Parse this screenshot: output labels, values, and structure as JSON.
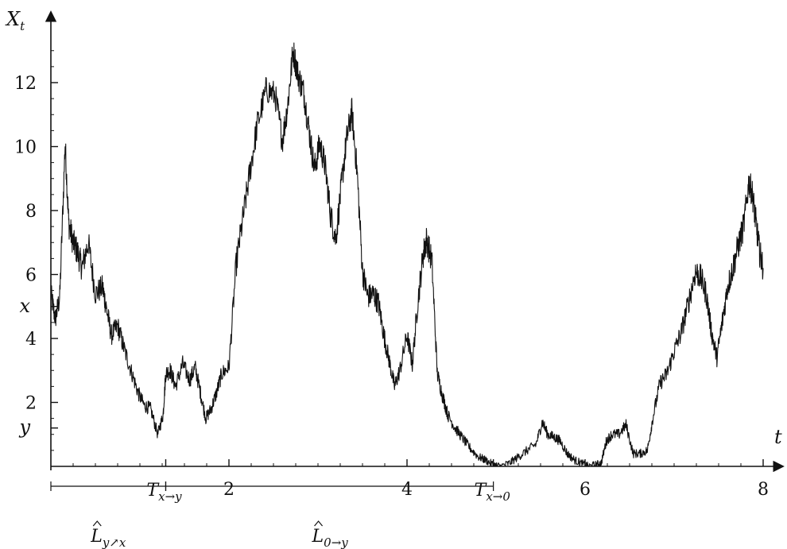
{
  "chart_data": {
    "type": "line",
    "title": "",
    "xlabel": "t",
    "ylabel": "X",
    "ylabel_subscript": "t",
    "xlim": [
      0,
      8.2
    ],
    "ylim": [
      0,
      13.8
    ],
    "x_ticks": [
      {
        "value": 2,
        "label": "2"
      },
      {
        "value": 4,
        "label": "4"
      },
      {
        "value": 6,
        "label": "6"
      },
      {
        "value": 8,
        "label": "8"
      }
    ],
    "y_ticks": [
      {
        "value": 2,
        "label": "2"
      },
      {
        "value": 4,
        "label": "4"
      },
      {
        "value": 6,
        "label": "6"
      },
      {
        "value": 8,
        "label": "8"
      },
      {
        "value": 10,
        "label": "10"
      },
      {
        "value": 12,
        "label": "12"
      }
    ],
    "y_marks": [
      {
        "name": "x",
        "value": 5.0
      },
      {
        "name": "y",
        "value": 1.2
      }
    ],
    "x_marks": [
      {
        "name": "T",
        "sub": "x→y",
        "value": 1.29
      },
      {
        "name": "T",
        "sub": "x→0",
        "value": 4.97
      }
    ],
    "intervals": [
      {
        "label": "L",
        "sub": "y↗x",
        "from": 0,
        "to": 1.29
      },
      {
        "label": "L",
        "sub": "0→y",
        "from": 1.29,
        "to": 4.97
      }
    ],
    "grid": false,
    "series": [
      {
        "x": [
          0.0,
          0.05,
          0.1,
          0.16,
          0.2,
          0.25,
          0.3,
          0.35,
          0.42,
          0.5,
          0.58,
          0.62,
          0.68,
          0.75,
          0.82,
          0.9,
          0.98,
          1.05,
          1.12,
          1.2,
          1.26,
          1.29,
          1.34,
          1.4,
          1.48,
          1.56,
          1.62,
          1.68,
          1.74,
          1.8,
          1.86,
          1.92,
          2.0,
          2.08,
          2.16,
          2.24,
          2.32,
          2.42,
          2.52,
          2.6,
          2.66,
          2.72,
          2.78,
          2.84,
          2.9,
          2.96,
          3.02,
          3.08,
          3.14,
          3.2,
          3.26,
          3.32,
          3.38,
          3.44,
          3.5,
          3.56,
          3.62,
          3.68,
          3.74,
          3.8,
          3.86,
          3.92,
          4.0,
          4.06,
          4.12,
          4.18,
          4.22,
          4.28,
          4.34,
          4.4,
          4.46,
          4.54,
          4.62,
          4.7,
          4.8,
          4.88,
          4.97,
          5.05,
          5.15,
          5.25,
          5.35,
          5.45,
          5.52,
          5.58,
          5.66,
          5.72,
          5.8,
          5.88,
          5.96,
          6.04,
          6.12,
          6.18,
          6.24,
          6.3,
          6.38,
          6.46,
          6.54,
          6.62,
          6.7,
          6.76,
          6.84,
          6.92,
          7.0,
          7.08,
          7.16,
          7.24,
          7.3,
          7.36,
          7.42,
          7.48,
          7.54,
          7.6,
          7.66,
          7.72,
          7.78,
          7.84,
          7.88,
          7.92,
          7.96,
          8.0
        ],
        "y": [
          5.4,
          4.6,
          5.3,
          10.1,
          7.6,
          7.0,
          6.7,
          6.2,
          7.0,
          5.4,
          5.6,
          5.0,
          4.1,
          4.4,
          3.7,
          3.0,
          2.3,
          1.9,
          1.8,
          1.0,
          1.6,
          2.9,
          3.0,
          2.5,
          3.2,
          2.7,
          3.1,
          2.3,
          1.5,
          1.8,
          2.3,
          2.9,
          3.1,
          6.3,
          7.8,
          9.3,
          10.7,
          11.8,
          11.6,
          10.2,
          11.3,
          13.0,
          12.2,
          11.7,
          10.5,
          9.3,
          10.1,
          9.4,
          7.9,
          7.1,
          8.7,
          10.2,
          11.1,
          9.2,
          6.1,
          5.3,
          5.4,
          5.1,
          4.1,
          3.3,
          2.5,
          3.0,
          4.1,
          3.2,
          5.1,
          6.6,
          7.1,
          6.4,
          2.9,
          2.2,
          1.6,
          1.2,
          0.9,
          0.6,
          0.3,
          0.2,
          0.05,
          0.0,
          0.1,
          0.3,
          0.5,
          0.7,
          1.4,
          1.0,
          0.9,
          0.8,
          0.4,
          0.2,
          0.1,
          0.0,
          0.05,
          0.1,
          0.8,
          1.0,
          1.0,
          1.3,
          0.4,
          0.4,
          0.5,
          1.5,
          2.6,
          2.9,
          3.6,
          4.2,
          5.1,
          6.1,
          5.9,
          5.4,
          4.2,
          3.4,
          4.5,
          5.6,
          6.2,
          6.9,
          7.5,
          8.9,
          8.5,
          7.6,
          6.7,
          6.2
        ]
      }
    ]
  }
}
